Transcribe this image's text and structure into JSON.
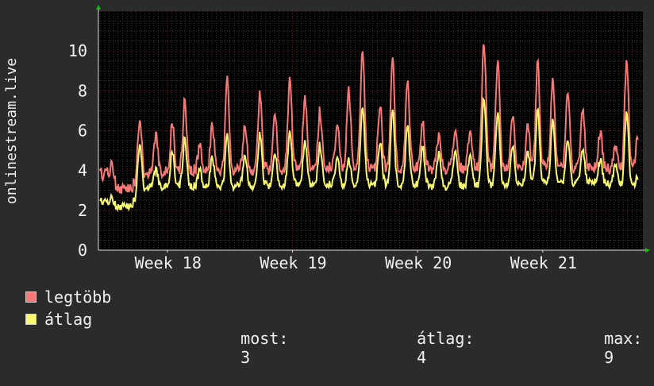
{
  "colors": {
    "background": "#2b2b2b",
    "plot_background": "#000000",
    "grid_minor": "#3a3a3a",
    "grid_major": "#5a2020",
    "axis": "#e0e0e0",
    "arrow": "#00cc00",
    "series_max": "#f87878",
    "series_avg": "#f8f870"
  },
  "chart_data": {
    "type": "line",
    "ylabel": "onlinestream.live",
    "ylim": [
      0,
      12
    ],
    "yticks": [
      "0",
      "2",
      "4",
      "6",
      "8",
      "10"
    ],
    "xlim": [
      17.45,
      21.8
    ],
    "xticks": [
      {
        "pos": 18,
        "label": "Week 18"
      },
      {
        "pos": 19,
        "label": "Week 19"
      },
      {
        "pos": 20,
        "label": "Week 20"
      },
      {
        "pos": 21,
        "label": "Week 21"
      }
    ],
    "day_peaks": [
      {
        "x": 17.46,
        "max": 4.2,
        "avg": 2.6
      },
      {
        "x": 17.52,
        "max": 4.0,
        "avg": 2.4
      },
      {
        "x": 17.56,
        "max": 4.3,
        "avg": 2.6
      },
      {
        "x": 17.65,
        "max": 3.2,
        "avg": 2.3
      },
      {
        "x": 17.78,
        "max": 6.5,
        "avg": 5.3
      },
      {
        "x": 17.91,
        "max": 5.7,
        "avg": 4.0
      },
      {
        "x": 18.04,
        "max": 6.3,
        "avg": 4.9
      },
      {
        "x": 18.14,
        "max": 7.5,
        "avg": 5.6
      },
      {
        "x": 18.26,
        "max": 5.2,
        "avg": 4.0
      },
      {
        "x": 18.36,
        "max": 6.2,
        "avg": 4.6
      },
      {
        "x": 18.48,
        "max": 8.5,
        "avg": 5.7
      },
      {
        "x": 18.62,
        "max": 6.3,
        "avg": 4.8
      },
      {
        "x": 18.74,
        "max": 7.8,
        "avg": 5.8
      },
      {
        "x": 18.86,
        "max": 6.8,
        "avg": 4.8
      },
      {
        "x": 18.98,
        "max": 8.7,
        "avg": 6.0
      },
      {
        "x": 19.1,
        "max": 7.6,
        "avg": 5.4
      },
      {
        "x": 19.22,
        "max": 7.0,
        "avg": 5.3
      },
      {
        "x": 19.36,
        "max": 6.2,
        "avg": 4.6
      },
      {
        "x": 19.45,
        "max": 8.0,
        "avg": 4.5
      },
      {
        "x": 19.56,
        "max": 10.2,
        "avg": 7.3
      },
      {
        "x": 19.7,
        "max": 7.4,
        "avg": 5.5
      },
      {
        "x": 19.8,
        "max": 9.6,
        "avg": 7.0
      },
      {
        "x": 19.92,
        "max": 8.4,
        "avg": 6.2
      },
      {
        "x": 20.04,
        "max": 6.4,
        "avg": 5.2
      },
      {
        "x": 20.17,
        "max": 5.8,
        "avg": 4.9
      },
      {
        "x": 20.3,
        "max": 6.0,
        "avg": 5.0
      },
      {
        "x": 20.42,
        "max": 6.0,
        "avg": 4.8
      },
      {
        "x": 20.53,
        "max": 10.5,
        "avg": 7.7
      },
      {
        "x": 20.64,
        "max": 9.5,
        "avg": 6.9
      },
      {
        "x": 20.76,
        "max": 6.7,
        "avg": 5.2
      },
      {
        "x": 20.88,
        "max": 6.4,
        "avg": 5.0
      },
      {
        "x": 20.96,
        "max": 9.4,
        "avg": 7.0
      },
      {
        "x": 21.08,
        "max": 8.8,
        "avg": 6.7
      },
      {
        "x": 21.2,
        "max": 7.9,
        "avg": 5.5
      },
      {
        "x": 21.32,
        "max": 7.0,
        "avg": 5.0
      },
      {
        "x": 21.46,
        "max": 6.0,
        "avg": 4.6
      },
      {
        "x": 21.58,
        "max": 5.2,
        "avg": 4.3
      },
      {
        "x": 21.67,
        "max": 9.6,
        "avg": 7.0
      },
      {
        "x": 21.76,
        "max": 5.8,
        "avg": 3.7
      }
    ],
    "baseline": [
      {
        "x": 17.45,
        "max": 3.6,
        "avg": 2.4
      },
      {
        "x": 17.6,
        "max": 3.0,
        "avg": 2.1
      },
      {
        "x": 17.7,
        "max": 3.1,
        "avg": 2.2
      },
      {
        "x": 17.85,
        "max": 3.9,
        "avg": 3.2
      },
      {
        "x": 18.2,
        "max": 4.0,
        "avg": 3.2
      },
      {
        "x": 18.6,
        "max": 4.0,
        "avg": 3.2
      },
      {
        "x": 19.0,
        "max": 4.1,
        "avg": 3.3
      },
      {
        "x": 19.4,
        "max": 4.2,
        "avg": 3.3
      },
      {
        "x": 19.8,
        "max": 4.1,
        "avg": 3.3
      },
      {
        "x": 20.2,
        "max": 4.1,
        "avg": 3.2
      },
      {
        "x": 20.6,
        "max": 4.2,
        "avg": 3.3
      },
      {
        "x": 21.0,
        "max": 4.1,
        "avg": 3.3
      },
      {
        "x": 21.4,
        "max": 4.1,
        "avg": 3.4
      },
      {
        "x": 21.8,
        "max": 4.0,
        "avg": 3.1
      }
    ],
    "series": [
      {
        "name": "legtöbb",
        "key": "max",
        "color": "#f87878"
      },
      {
        "name": "átlag",
        "key": "avg",
        "color": "#f8f870"
      }
    ]
  },
  "legend": {
    "max_label": "legtöbb",
    "avg_label": "átlag",
    "stats": {
      "now_label": "most:",
      "now_value": "3",
      "avg_label": "átlag:",
      "avg_value": "4",
      "max_label": "max:",
      "max_value": "9"
    }
  }
}
